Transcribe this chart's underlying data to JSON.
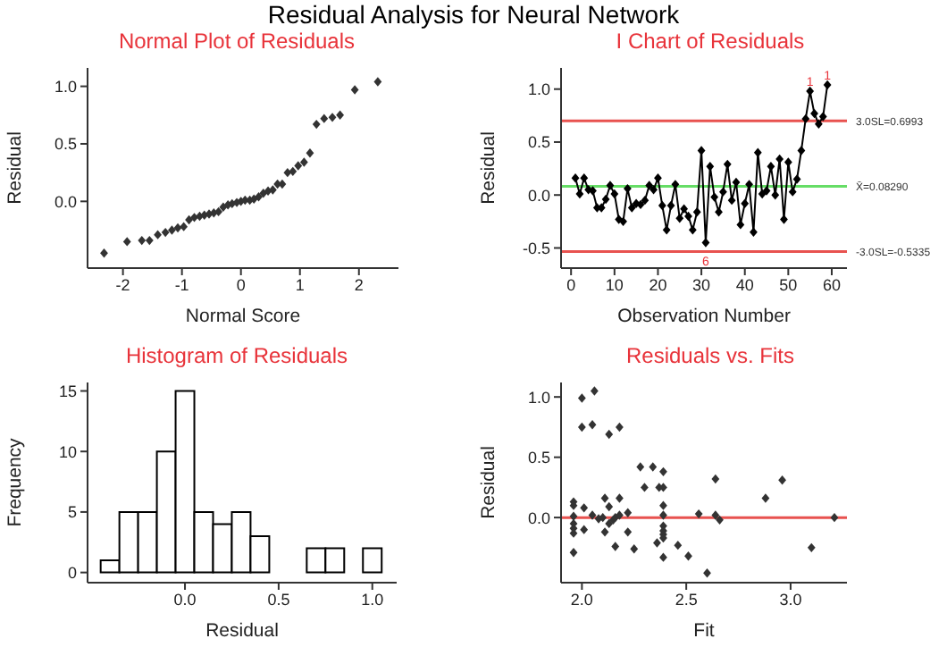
{
  "chart_data": [
    {
      "type": "scatter",
      "title": "Normal Plot of Residuals",
      "xlabel": "Normal Score",
      "ylabel": "Residual",
      "annotations": [
        "Residual Analysis for Neural Network"
      ],
      "marker": "diamond",
      "color": "#333333",
      "x": [
        -2.32,
        -1.93,
        -1.68,
        -1.55,
        -1.41,
        -1.28,
        -1.17,
        -1.07,
        -0.97,
        -0.88,
        -0.79,
        -0.7,
        -0.62,
        -0.54,
        -0.46,
        -0.38,
        -0.3,
        -0.22,
        -0.15,
        -0.07,
        0,
        0.07,
        0.15,
        0.22,
        0.3,
        0.38,
        0.46,
        0.54,
        0.62,
        0.7,
        0.79,
        0.88,
        0.97,
        1.07,
        1.17,
        1.28,
        1.41,
        1.55,
        1.68,
        1.93,
        2.32
      ],
      "values": [
        -0.45,
        -0.35,
        -0.34,
        -0.34,
        -0.29,
        -0.27,
        -0.25,
        -0.23,
        -0.22,
        -0.16,
        -0.14,
        -0.13,
        -0.12,
        -0.11,
        -0.1,
        -0.09,
        -0.05,
        -0.03,
        -0.02,
        -0.01,
        0,
        0.01,
        0.01,
        0.02,
        0.04,
        0.07,
        0.09,
        0.1,
        0.15,
        0.15,
        0.25,
        0.26,
        0.31,
        0.34,
        0.42,
        0.67,
        0.72,
        0.73,
        0.75,
        0.97,
        1.04
      ],
      "xlim": [
        -2.6,
        2.67
      ],
      "ylim": [
        -0.58,
        1.16
      ],
      "xticks": [
        -2,
        -1,
        0,
        1,
        2
      ],
      "yticks": [
        {
          "value": 0,
          "label": "0.0"
        },
        0.5,
        {
          "value": 1,
          "label": "1.0"
        }
      ]
    },
    {
      "type": "line",
      "title": "I Chart of Residuals",
      "xlabel": "Observation Number",
      "ylabel": "Residual",
      "marker": "diamond",
      "color": "#000000",
      "x": [
        1,
        2,
        3,
        4,
        5,
        6,
        7,
        8,
        9,
        10,
        11,
        12,
        13,
        14,
        15,
        16,
        17,
        18,
        19,
        20,
        21,
        22,
        23,
        24,
        25,
        26,
        27,
        28,
        29,
        30,
        31,
        32,
        33,
        34,
        35,
        36,
        37,
        38,
        39,
        40,
        41,
        42,
        43,
        44,
        45,
        46,
        47,
        48,
        49,
        50,
        51,
        52,
        53,
        54,
        55,
        56,
        57,
        58,
        59
      ],
      "values": [
        0.16,
        0.01,
        0.16,
        0.05,
        0.04,
        -0.12,
        -0.12,
        -0.04,
        0.09,
        0.01,
        -0.23,
        -0.25,
        0.06,
        -0.12,
        -0.08,
        -0.09,
        -0.05,
        0.09,
        0.05,
        0.16,
        -0.1,
        -0.33,
        -0.1,
        0.1,
        -0.22,
        -0.13,
        -0.2,
        -0.33,
        -0.16,
        0.42,
        -0.45,
        0.27,
        -0.02,
        -0.16,
        0.03,
        0.29,
        -0.05,
        0.12,
        -0.28,
        -0.08,
        0.1,
        -0.35,
        0.4,
        0.01,
        0.04,
        0.27,
        0,
        0.34,
        -0.23,
        0.31,
        0.03,
        0.15,
        0.42,
        0.72,
        0.98,
        0.77,
        0.67,
        0.74,
        1.04
      ],
      "xlim": [
        -2.3,
        63.5
      ],
      "ylim": [
        -0.69,
        1.2
      ],
      "xticks": [
        0,
        10,
        20,
        30,
        40,
        50,
        60
      ],
      "yticks": [
        {
          "value": -0.5,
          "label": "-0.5"
        },
        {
          "value": 0,
          "label": "0.0"
        },
        0.5,
        {
          "value": 1,
          "label": "1.0"
        }
      ],
      "ref_lines": [
        {
          "axis": "y",
          "value": 0.6993,
          "label": "3.0SL=0.6993",
          "color": "#e8524f"
        },
        {
          "axis": "y",
          "value": 0.0829,
          "label": "X̄=0.08290",
          "color": "#66dd66"
        },
        {
          "axis": "y",
          "value": -0.5335,
          "label": "-3.0SL=-0.5335",
          "color": "#e8524f"
        }
      ],
      "annotations": [
        {
          "text": "1",
          "x": 55,
          "y": 0.98
        },
        {
          "text": "1",
          "x": 59,
          "y": 1.04
        },
        {
          "text": "6",
          "x": 31,
          "y": -0.45
        }
      ]
    },
    {
      "type": "histogram",
      "title": "Histogram of Residuals",
      "xlabel": "Residual",
      "ylabel": "Frequency",
      "color": "#ffffff",
      "bins": [
        -0.45,
        -0.35,
        -0.25,
        -0.15,
        -0.05,
        0.05,
        0.15,
        0.25,
        0.35,
        0.45,
        0.55,
        0.65,
        0.75,
        0.85,
        0.95,
        1.05
      ],
      "values": [
        1,
        5,
        5,
        10,
        15,
        5,
        4,
        5,
        3,
        0,
        0,
        2,
        2,
        0,
        2
      ],
      "xlim": [
        -0.52,
        1.13
      ],
      "ylim": [
        -0.84,
        15.7
      ],
      "xticks": [
        {
          "value": 0,
          "label": "0.0"
        },
        0.5,
        {
          "value": 1,
          "label": "1.0"
        }
      ],
      "yticks": [
        0,
        5,
        10,
        15
      ]
    },
    {
      "type": "scatter",
      "title": "Residuals vs. Fits",
      "xlabel": "Fit",
      "ylabel": "Residual",
      "marker": "diamond",
      "color": "#333333",
      "x": [
        1.96,
        1.96,
        1.96,
        1.96,
        1.96,
        1.96,
        1.96,
        2.0,
        2.0,
        2.01,
        2.01,
        2.05,
        2.06,
        2.05,
        2.08,
        2.1,
        2.11,
        2.11,
        2.13,
        2.13,
        2.13,
        2.15,
        2.16,
        2.16,
        2.18,
        2.18,
        2.18,
        2.22,
        2.22,
        2.25,
        2.28,
        2.3,
        2.34,
        2.36,
        2.37,
        2.39,
        2.39,
        2.39,
        2.39,
        2.39,
        2.39,
        2.39,
        2.39,
        2.39,
        2.46,
        2.51,
        2.56,
        2.6,
        2.64,
        2.64,
        2.66,
        2.88,
        2.96,
        3.1,
        3.21
      ],
      "values": [
        0.13,
        0.1,
        0.01,
        -0.05,
        -0.13,
        -0.29,
        -0.09,
        0.99,
        0.75,
        0.08,
        -0.1,
        0.77,
        1.05,
        0.02,
        -0.01,
        0,
        0.16,
        -0.12,
        0.69,
        0.09,
        -0.05,
        -0.02,
        0,
        -0.24,
        0.75,
        0.16,
        0.02,
        0.04,
        -0.12,
        -0.26,
        0.42,
        0.25,
        0.42,
        -0.21,
        0.25,
        0.25,
        0.38,
        0.1,
        0.02,
        -0.07,
        -0.11,
        -0.14,
        -0.17,
        -0.33,
        -0.23,
        -0.32,
        0.03,
        -0.46,
        0.02,
        0.32,
        -0.02,
        0.16,
        0.31,
        -0.25,
        0
      ],
      "xlim": [
        1.9,
        3.27
      ],
      "ylim": [
        -0.54,
        1.12
      ],
      "xticks": [
        {
          "value": 2,
          "label": "2.0"
        },
        2.5,
        {
          "value": 3,
          "label": "3.0"
        }
      ],
      "yticks": [
        {
          "value": 0,
          "label": "0.0"
        },
        0.5,
        {
          "value": 1,
          "label": "1.0"
        }
      ],
      "ref_lines": [
        {
          "axis": "y",
          "value": 0,
          "color": "#e8524f"
        }
      ]
    }
  ]
}
